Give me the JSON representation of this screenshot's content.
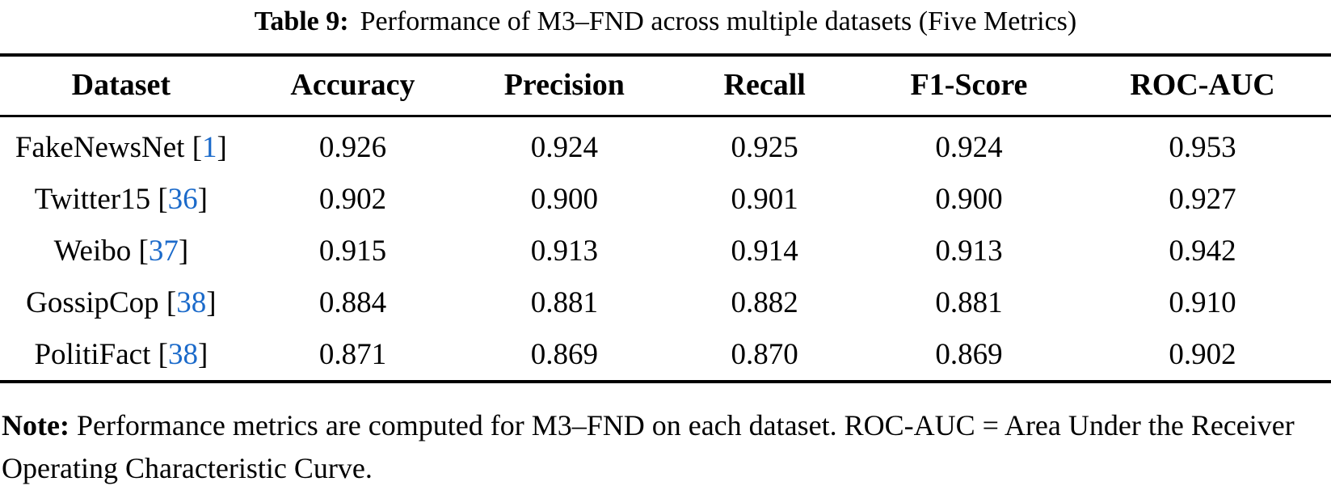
{
  "caption": {
    "label": "Table 9:",
    "text": "Performance of M3–FND across multiple datasets (Five Metrics)"
  },
  "table": {
    "columns": [
      "Dataset",
      "Accuracy",
      "Precision",
      "Recall",
      "F1-Score",
      "ROC-AUC"
    ],
    "rows": [
      {
        "dataset": "FakeNewsNet",
        "citation": "1",
        "values": [
          "0.926",
          "0.924",
          "0.925",
          "0.924",
          "0.953"
        ]
      },
      {
        "dataset": "Twitter15",
        "citation": "36",
        "values": [
          "0.902",
          "0.900",
          "0.901",
          "0.900",
          "0.927"
        ]
      },
      {
        "dataset": "Weibo",
        "citation": "37",
        "values": [
          "0.915",
          "0.913",
          "0.914",
          "0.913",
          "0.942"
        ]
      },
      {
        "dataset": "GossipCop",
        "citation": "38",
        "values": [
          "0.884",
          "0.881",
          "0.882",
          "0.881",
          "0.910"
        ]
      },
      {
        "dataset": "PolitiFact",
        "citation": "38",
        "values": [
          "0.871",
          "0.869",
          "0.870",
          "0.869",
          "0.902"
        ]
      }
    ]
  },
  "note": {
    "label": "Note:",
    "text": "Performance metrics are computed for M3–FND on each dataset. ROC-AUC = Area Under the Receiver Operating Characteristic Curve."
  },
  "colors": {
    "text": "#000000",
    "citation_link": "#1b6aca"
  }
}
